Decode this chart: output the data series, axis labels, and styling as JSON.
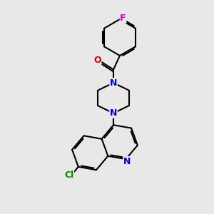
{
  "background_color": "#e8e8e8",
  "bond_color": "#000000",
  "N_color": "#0000cc",
  "O_color": "#cc0000",
  "Cl_color": "#008800",
  "F_color": "#cc00cc",
  "line_width": 1.5,
  "figsize": [
    3.0,
    3.0
  ],
  "dpi": 100,
  "xlim": [
    0,
    10
  ],
  "ylim": [
    0,
    10
  ]
}
